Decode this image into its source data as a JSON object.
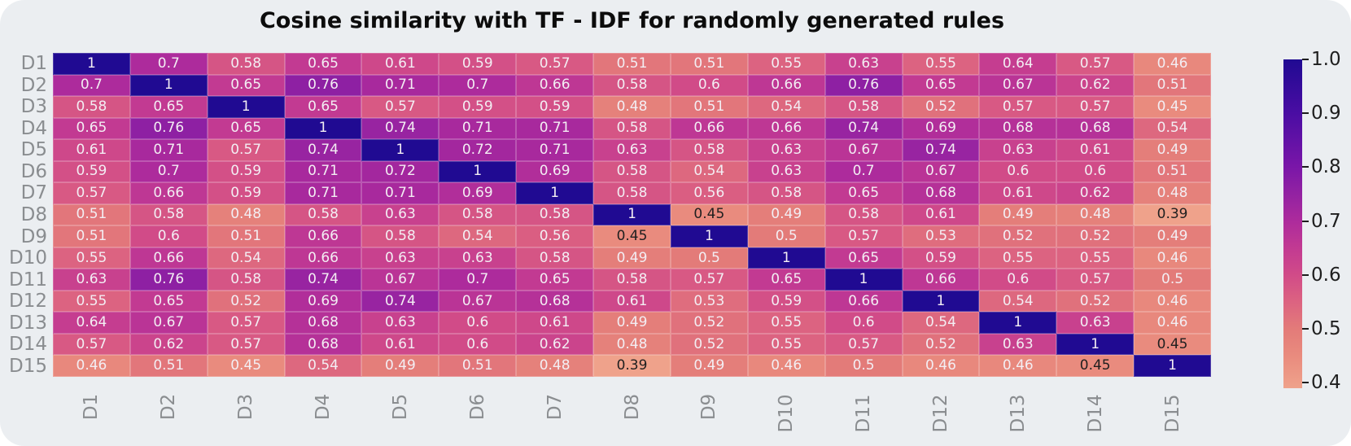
{
  "title": "Cosine similarity with TF - IDF for randomly generated rules",
  "chart_data": {
    "type": "heatmap",
    "categories": [
      "D1",
      "D2",
      "D3",
      "D4",
      "D5",
      "D6",
      "D7",
      "D8",
      "D9",
      "D10",
      "D11",
      "D12",
      "D13",
      "D14",
      "D15"
    ],
    "matrix": [
      [
        1,
        0.7,
        0.58,
        0.65,
        0.61,
        0.59,
        0.57,
        0.51,
        0.51,
        0.55,
        0.63,
        0.55,
        0.64,
        0.57,
        0.46
      ],
      [
        0.7,
        1,
        0.65,
        0.76,
        0.71,
        0.7,
        0.66,
        0.58,
        0.6,
        0.66,
        0.76,
        0.65,
        0.67,
        0.62,
        0.51
      ],
      [
        0.58,
        0.65,
        1,
        0.65,
        0.57,
        0.59,
        0.59,
        0.48,
        0.51,
        0.54,
        0.58,
        0.52,
        0.57,
        0.57,
        0.45
      ],
      [
        0.65,
        0.76,
        0.65,
        1,
        0.74,
        0.71,
        0.71,
        0.58,
        0.66,
        0.66,
        0.74,
        0.69,
        0.68,
        0.68,
        0.54
      ],
      [
        0.61,
        0.71,
        0.57,
        0.74,
        1,
        0.72,
        0.71,
        0.63,
        0.58,
        0.63,
        0.67,
        0.74,
        0.63,
        0.61,
        0.49
      ],
      [
        0.59,
        0.7,
        0.59,
        0.71,
        0.72,
        1,
        0.69,
        0.58,
        0.54,
        0.63,
        0.7,
        0.67,
        0.6,
        0.6,
        0.51
      ],
      [
        0.57,
        0.66,
        0.59,
        0.71,
        0.71,
        0.69,
        1,
        0.58,
        0.56,
        0.58,
        0.65,
        0.68,
        0.61,
        0.62,
        0.48
      ],
      [
        0.51,
        0.58,
        0.48,
        0.58,
        0.63,
        0.58,
        0.58,
        1,
        0.45,
        0.49,
        0.58,
        0.61,
        0.49,
        0.48,
        0.39
      ],
      [
        0.51,
        0.6,
        0.51,
        0.66,
        0.58,
        0.54,
        0.56,
        0.45,
        1,
        0.5,
        0.57,
        0.53,
        0.52,
        0.52,
        0.49
      ],
      [
        0.55,
        0.66,
        0.54,
        0.66,
        0.63,
        0.63,
        0.58,
        0.49,
        0.5,
        1,
        0.65,
        0.59,
        0.55,
        0.55,
        0.46
      ],
      [
        0.63,
        0.76,
        0.58,
        0.74,
        0.67,
        0.7,
        0.65,
        0.58,
        0.57,
        0.65,
        1,
        0.66,
        0.6,
        0.57,
        0.5
      ],
      [
        0.55,
        0.65,
        0.52,
        0.69,
        0.74,
        0.67,
        0.68,
        0.61,
        0.53,
        0.59,
        0.66,
        1,
        0.54,
        0.52,
        0.46
      ],
      [
        0.64,
        0.67,
        0.57,
        0.68,
        0.63,
        0.6,
        0.61,
        0.49,
        0.52,
        0.55,
        0.6,
        0.54,
        1,
        0.63,
        0.46
      ],
      [
        0.57,
        0.62,
        0.57,
        0.68,
        0.61,
        0.6,
        0.62,
        0.48,
        0.52,
        0.55,
        0.57,
        0.52,
        0.63,
        1,
        0.45
      ],
      [
        0.46,
        0.51,
        0.45,
        0.54,
        0.49,
        0.51,
        0.48,
        0.39,
        0.49,
        0.46,
        0.5,
        0.46,
        0.46,
        0.45,
        1
      ]
    ],
    "colorbar_ticks": [
      "1.0",
      "0.9",
      "0.8",
      "0.7",
      "0.6",
      "0.5",
      "0.4"
    ],
    "vmin": 0.39,
    "vmax": 1.0,
    "colormap_stops": [
      [
        0.39,
        "#efa28b"
      ],
      [
        0.45,
        "#e98b7e"
      ],
      [
        0.5,
        "#e37b79"
      ],
      [
        0.55,
        "#dc6381"
      ],
      [
        0.6,
        "#d14b88"
      ],
      [
        0.65,
        "#c23a92"
      ],
      [
        0.7,
        "#ad2b9c"
      ],
      [
        0.75,
        "#9322a2"
      ],
      [
        0.8,
        "#7a16a8"
      ],
      [
        0.9,
        "#4a0da3"
      ],
      [
        1.0,
        "#200a92"
      ]
    ],
    "dark_text_cells": [
      [
        7,
        8
      ],
      [
        8,
        7
      ],
      [
        7,
        14
      ],
      [
        14,
        7
      ],
      [
        13,
        14
      ],
      [
        14,
        13
      ]
    ],
    "legend_position": "right",
    "grid": false
  },
  "style": {
    "page_bg": "#ffffff",
    "card_bg": "#ebeef1",
    "title_color": "#0c0c0c",
    "axis_tick_color": "#8a8d90",
    "colorbar_tick_color": "#1e1e1e",
    "annot_light": "#f3eef3",
    "annot_dark": "#1f1f1f"
  }
}
